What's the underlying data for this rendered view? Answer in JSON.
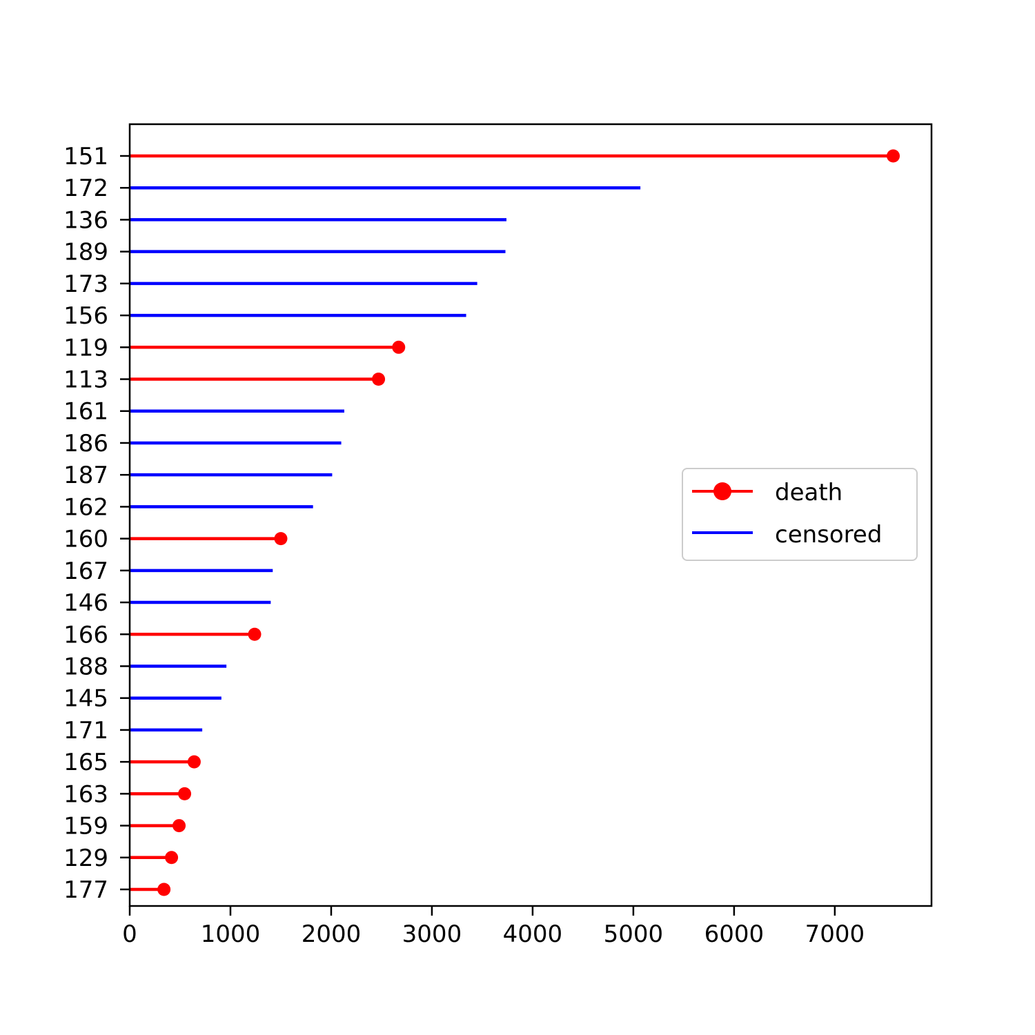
{
  "chart_data": {
    "type": "lollipop-horizontal",
    "title": "",
    "xlabel": "",
    "ylabel": "",
    "xlim": [
      0,
      7960
    ],
    "x_ticks": [
      0,
      1000,
      2000,
      3000,
      4000,
      5000,
      6000,
      7000
    ],
    "grid": false,
    "legend_position": "center-right",
    "legend": [
      {
        "name": "death",
        "color": "#ff0000",
        "marker": "circle"
      },
      {
        "name": "censored",
        "color": "#0000ff",
        "marker": "none"
      }
    ],
    "rows": [
      {
        "label": "151",
        "value": 7580,
        "status": "death"
      },
      {
        "label": "172",
        "value": 5070,
        "status": "censored"
      },
      {
        "label": "136",
        "value": 3740,
        "status": "censored"
      },
      {
        "label": "189",
        "value": 3730,
        "status": "censored"
      },
      {
        "label": "173",
        "value": 3450,
        "status": "censored"
      },
      {
        "label": "156",
        "value": 3340,
        "status": "censored"
      },
      {
        "label": "119",
        "value": 2670,
        "status": "death"
      },
      {
        "label": "113",
        "value": 2470,
        "status": "death"
      },
      {
        "label": "161",
        "value": 2130,
        "status": "censored"
      },
      {
        "label": "186",
        "value": 2100,
        "status": "censored"
      },
      {
        "label": "187",
        "value": 2010,
        "status": "censored"
      },
      {
        "label": "162",
        "value": 1820,
        "status": "censored"
      },
      {
        "label": "160",
        "value": 1500,
        "status": "death"
      },
      {
        "label": "167",
        "value": 1420,
        "status": "censored"
      },
      {
        "label": "146",
        "value": 1400,
        "status": "censored"
      },
      {
        "label": "166",
        "value": 1240,
        "status": "death"
      },
      {
        "label": "188",
        "value": 960,
        "status": "censored"
      },
      {
        "label": "145",
        "value": 910,
        "status": "censored"
      },
      {
        "label": "171",
        "value": 720,
        "status": "censored"
      },
      {
        "label": "165",
        "value": 640,
        "status": "death"
      },
      {
        "label": "163",
        "value": 545,
        "status": "death"
      },
      {
        "label": "159",
        "value": 490,
        "status": "death"
      },
      {
        "label": "129",
        "value": 415,
        "status": "death"
      },
      {
        "label": "177",
        "value": 340,
        "status": "death"
      }
    ]
  }
}
